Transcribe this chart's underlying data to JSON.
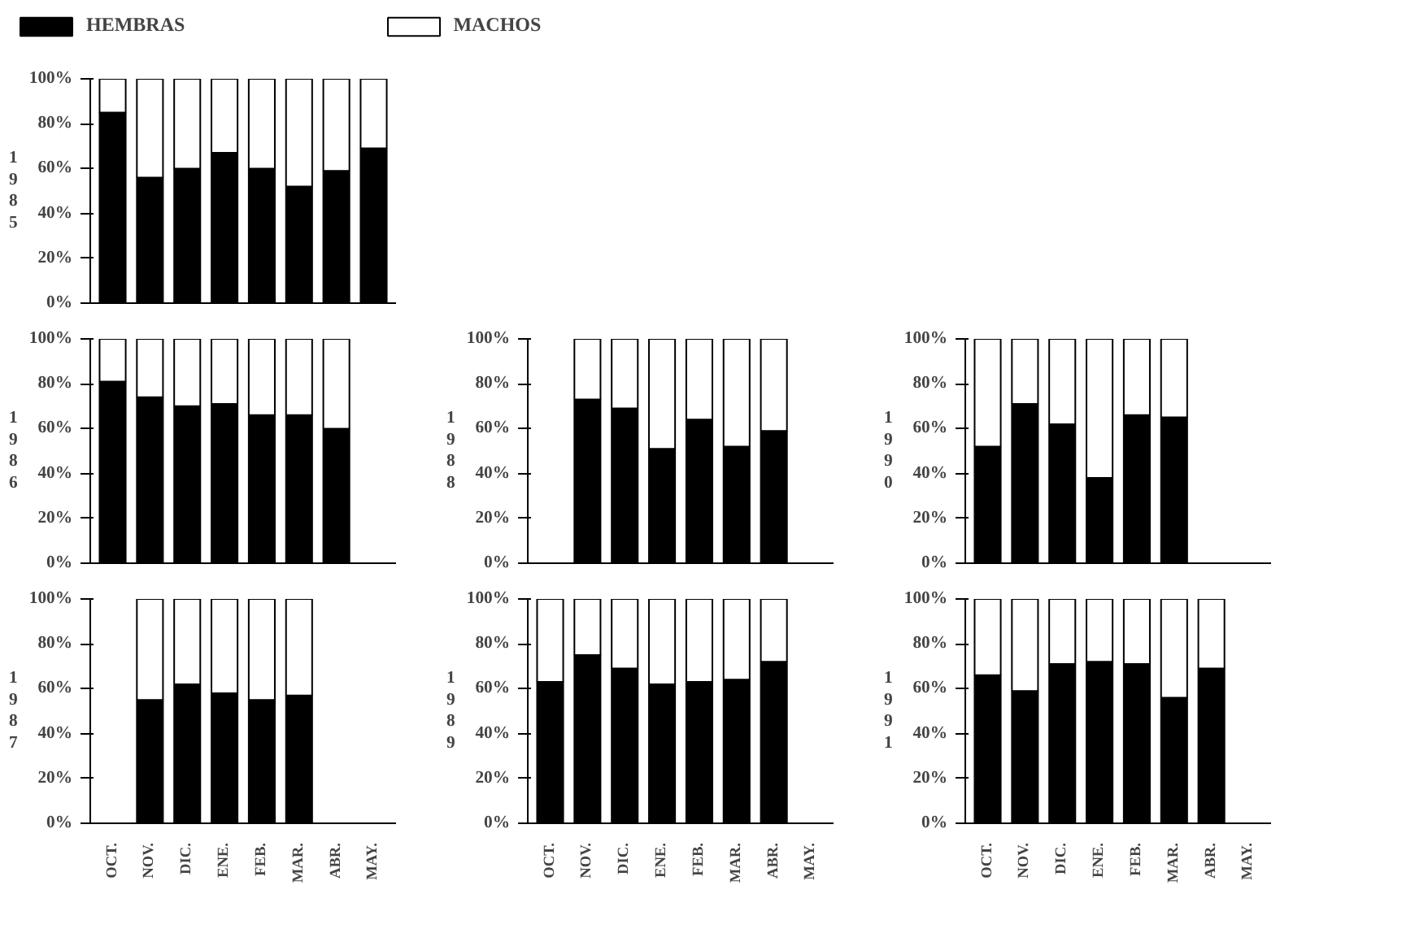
{
  "chart_data": [
    {
      "type": "bar",
      "stacked": true,
      "ylabel": "1985",
      "legend": "top",
      "tick_labels": "y",
      "categories": [
        null,
        null,
        null,
        null,
        null,
        null,
        null,
        null
      ],
      "ylim": [
        0,
        100
      ],
      "yticks": [
        {
          "value": 0,
          "label": "0%"
        },
        {
          "value": 20,
          "label": "20%"
        },
        {
          "value": 40,
          "label": "40%"
        },
        {
          "value": 60,
          "label": "60%"
        },
        {
          "value": 80,
          "label": "80%"
        },
        {
          "value": 100,
          "label": "100%"
        }
      ],
      "series": [
        {
          "name": "HEMBRAS",
          "color": "#000000",
          "values": [
            85,
            56,
            60,
            67,
            60,
            52,
            59,
            69
          ]
        },
        {
          "name": "MACHOS",
          "color": "#ffffff",
          "values": [
            15,
            44,
            40,
            33,
            40,
            48,
            41,
            31
          ]
        }
      ]
    },
    {
      "type": "bar",
      "stacked": true,
      "ylabel": "1986",
      "tick_labels": "y",
      "categories": [
        null,
        null,
        null,
        null,
        null,
        null,
        null,
        null
      ],
      "ylim": [
        0,
        100
      ],
      "yticks": [
        {
          "value": 0,
          "label": "0%"
        },
        {
          "value": 20,
          "label": "20%"
        },
        {
          "value": 40,
          "label": "40%"
        },
        {
          "value": 60,
          "label": "60%"
        },
        {
          "value": 80,
          "label": "80%"
        },
        {
          "value": 100,
          "label": "100%"
        }
      ],
      "series": [
        {
          "color": "#000000",
          "values": [
            81,
            74,
            70,
            71,
            66,
            66,
            60,
            null
          ]
        },
        {
          "color": "#ffffff",
          "values": [
            19,
            26,
            30,
            29,
            34,
            34,
            40,
            null
          ]
        }
      ]
    },
    {
      "type": "bar",
      "stacked": true,
      "ylabel": "1988",
      "tick_labels": "y",
      "categories": [
        null,
        null,
        null,
        null,
        null,
        null,
        null,
        null
      ],
      "ylim": [
        0,
        100
      ],
      "yticks": [
        {
          "value": 0,
          "label": "0%"
        },
        {
          "value": 20,
          "label": "20%"
        },
        {
          "value": 40,
          "label": "40%"
        },
        {
          "value": 60,
          "label": "60%"
        },
        {
          "value": 80,
          "label": "80%"
        },
        {
          "value": 100,
          "label": "100%"
        }
      ],
      "series": [
        {
          "color": "#000000",
          "values": [
            null,
            73,
            69,
            51,
            64,
            52,
            59,
            null
          ]
        },
        {
          "color": "#ffffff",
          "values": [
            null,
            27,
            31,
            49,
            36,
            48,
            41,
            null
          ]
        }
      ]
    },
    {
      "type": "bar",
      "stacked": true,
      "ylabel": "1990",
      "tick_labels": "y",
      "categories": [
        null,
        null,
        null,
        null,
        null,
        null,
        null,
        null
      ],
      "ylim": [
        0,
        100
      ],
      "yticks": [
        {
          "value": 0,
          "label": "0%"
        },
        {
          "value": 20,
          "label": "20%"
        },
        {
          "value": 40,
          "label": "40%"
        },
        {
          "value": 60,
          "label": "60%"
        },
        {
          "value": 80,
          "label": "80%"
        },
        {
          "value": 100,
          "label": "100%"
        }
      ],
      "series": [
        {
          "color": "#000000",
          "values": [
            52,
            71,
            62,
            38,
            66,
            65,
            null,
            null
          ]
        },
        {
          "color": "#ffffff",
          "values": [
            48,
            29,
            38,
            62,
            34,
            35,
            null,
            null
          ]
        }
      ]
    },
    {
      "type": "bar",
      "stacked": true,
      "ylabel": "1987",
      "categories": [
        "OCT.",
        "NOV.",
        "DIC.",
        "ENE.",
        "FEB.",
        "MAR.",
        "ABR.",
        "MAY."
      ],
      "ylim": [
        0,
        100
      ],
      "yticks": [
        {
          "value": 0,
          "label": "0%"
        },
        {
          "value": 20,
          "label": "20%"
        },
        {
          "value": 40,
          "label": "40%"
        },
        {
          "value": 60,
          "label": "60%"
        },
        {
          "value": 80,
          "label": "80%"
        },
        {
          "value": 100,
          "label": "100%"
        }
      ],
      "series": [
        {
          "color": "#000000",
          "values": [
            null,
            55,
            62,
            58,
            55,
            57,
            null,
            null
          ]
        },
        {
          "color": "#ffffff",
          "values": [
            null,
            45,
            38,
            42,
            45,
            43,
            null,
            null
          ]
        }
      ]
    },
    {
      "type": "bar",
      "stacked": true,
      "ylabel": "1989",
      "categories": [
        "OCT.",
        "NOV.",
        "DIC.",
        "ENE.",
        "FEB.",
        "MAR.",
        "ABR.",
        "MAY."
      ],
      "ylim": [
        0,
        100
      ],
      "yticks": [
        {
          "value": 0,
          "label": "0%"
        },
        {
          "value": 20,
          "label": "20%"
        },
        {
          "value": 40,
          "label": "40%"
        },
        {
          "value": 60,
          "label": "60%"
        },
        {
          "value": 80,
          "label": "80%"
        },
        {
          "value": 100,
          "label": "100%"
        }
      ],
      "series": [
        {
          "color": "#000000",
          "values": [
            63,
            75,
            69,
            62,
            63,
            64,
            72,
            null
          ]
        },
        {
          "color": "#ffffff",
          "values": [
            37,
            25,
            31,
            38,
            37,
            36,
            28,
            null
          ]
        }
      ]
    },
    {
      "type": "bar",
      "stacked": true,
      "ylabel": "1991",
      "categories": [
        "OCT.",
        "NOV.",
        "DIC.",
        "ENE.",
        "FEB.",
        "MAR.",
        "ABR.",
        "MAY."
      ],
      "ylim": [
        0,
        100
      ],
      "yticks": [
        {
          "value": 0,
          "label": "0%"
        },
        {
          "value": 20,
          "label": "20%"
        },
        {
          "value": 40,
          "label": "40%"
        },
        {
          "value": 60,
          "label": "60%"
        },
        {
          "value": 80,
          "label": "80%"
        },
        {
          "value": 100,
          "label": "100%"
        }
      ],
      "series": [
        {
          "color": "#000000",
          "values": [
            66,
            59,
            71,
            72,
            71,
            56,
            69,
            null
          ]
        },
        {
          "color": "#ffffff",
          "values": [
            34,
            41,
            29,
            28,
            29,
            44,
            31,
            null
          ]
        }
      ]
    }
  ]
}
